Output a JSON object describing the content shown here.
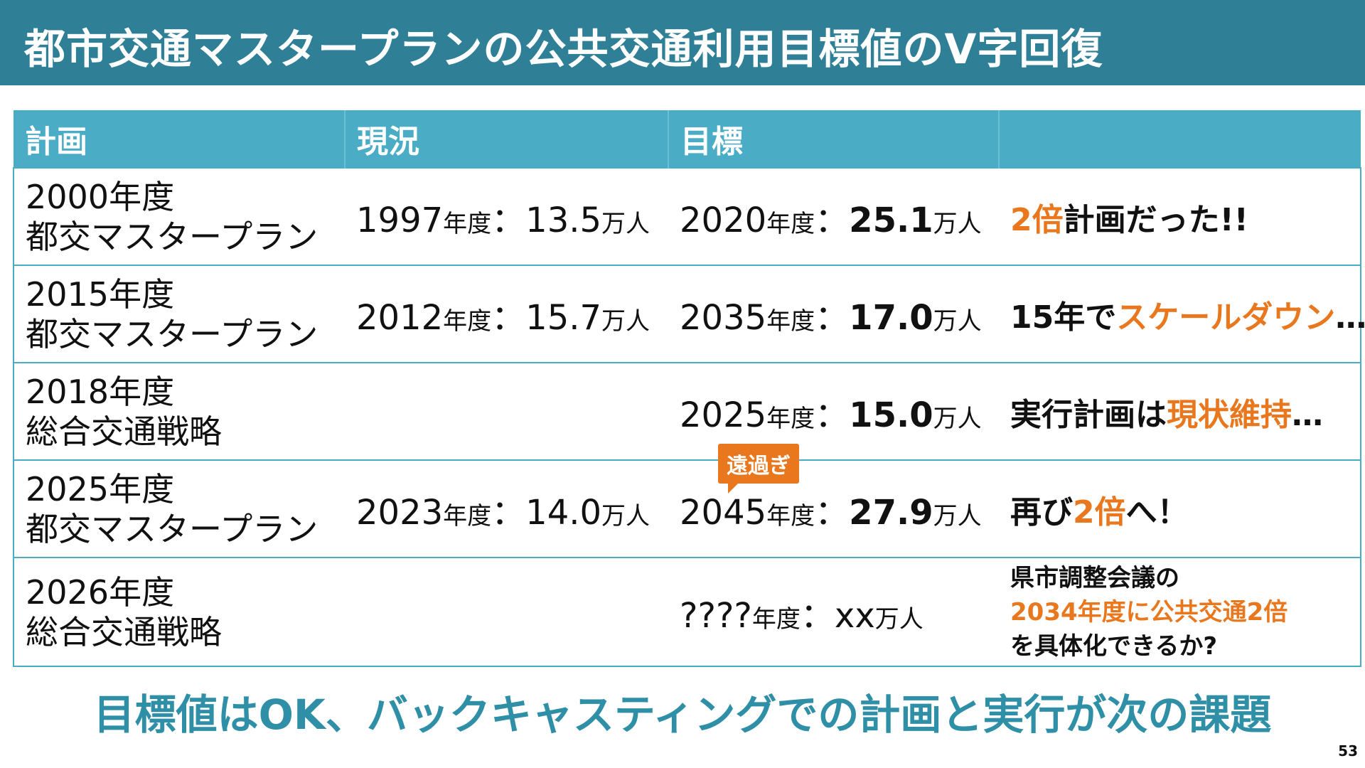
{
  "title": "都市交通マスタープランの公共交通利用目標値のV字回復",
  "headers": [
    "計画",
    "現況",
    "目標",
    ""
  ],
  "rows": [
    {
      "plan_line1": "2000年度",
      "plan_line2": "都交マスタープラン",
      "cur_year": "1997",
      "cur_year_unit": "年度",
      "cur_sep": "：",
      "cur_num": "13.5",
      "cur_unit": "万人",
      "tgt_year": "2020",
      "tgt_year_unit": "年度",
      "tgt_sep": "：",
      "tgt_num": "25.1",
      "tgt_unit": "万人",
      "c1": "2倍",
      "c2": "計画だった!!",
      "c3": ""
    },
    {
      "plan_line1": "2015年度",
      "plan_line2": "都交マスタープラン",
      "cur_year": "2012",
      "cur_year_unit": "年度",
      "cur_sep": "：",
      "cur_num": "15.7",
      "cur_unit": "万人",
      "tgt_year": "2035",
      "tgt_year_unit": "年度",
      "tgt_sep": "：",
      "tgt_num": "17.0",
      "tgt_unit": "万人",
      "c1": "15年で",
      "c2": "スケールダウン",
      "c3": "…"
    },
    {
      "plan_line1": "2018年度",
      "plan_line2": "総合交通戦略",
      "tgt_year": "2025",
      "tgt_year_unit": "年度",
      "tgt_sep": "：",
      "tgt_num": "15.0",
      "tgt_unit": "万人",
      "c1": "実行計画は",
      "c2": "現状維持",
      "c3": "…"
    },
    {
      "plan_line1": "2025年度",
      "plan_line2": "都交マスタープラン",
      "cur_year": "2023",
      "cur_year_unit": "年度",
      "cur_sep": "：",
      "cur_num": "14.0",
      "cur_unit": "万人",
      "tgt_year": "2045",
      "tgt_year_unit": "年度",
      "tgt_sep": "：",
      "tgt_num": "27.9",
      "tgt_unit": "万人",
      "bubble": "遠過ぎ",
      "c1": "再び",
      "c2": "2倍",
      "c3": "へ！"
    },
    {
      "plan_line1": "2026年度",
      "plan_line2": "総合交通戦略",
      "tgt_year": "????",
      "tgt_year_unit": "年度",
      "tgt_sep": "：",
      "tgt_num": "xx",
      "tgt_unit": "万人",
      "c1": "県市調整会議の",
      "c2": "2034年度に公共交通2倍",
      "c3": "を具体化できるか?"
    }
  ],
  "bottom_message": "目標値はOK、バックキャスティングでの計画と実行が次の課題",
  "page_number": "53",
  "colors": {
    "header_bg": "#2f7f96",
    "table_header_bg": "#4bacc6",
    "accent": "#e8771e",
    "bottom_text": "#2f8fa6"
  }
}
